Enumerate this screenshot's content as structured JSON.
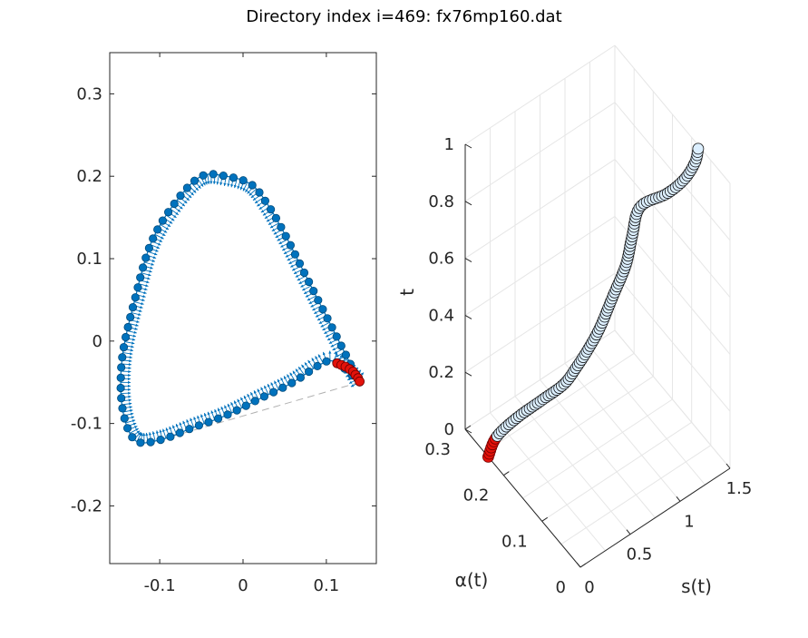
{
  "title": "Directory index i=469: fx76mp160.dat",
  "colors": {
    "body": "#0072bd",
    "body_dark": "#004a7a",
    "highlight": "#e3120b",
    "highlight_dark": "#700000",
    "light_marker": "#dcefff",
    "grid": "#e6e6e6",
    "axis": "#262626"
  },
  "chart_data": [
    {
      "type": "scatter",
      "panel": "left",
      "title": "",
      "xlabel": "",
      "ylabel": "",
      "xlim": [
        -0.16,
        0.16
      ],
      "ylim": [
        -0.27,
        0.35
      ],
      "xticks": [
        -0.1,
        0,
        0.1
      ],
      "xtick_labels": [
        "-0.1",
        "0",
        "0.1"
      ],
      "yticks": [
        -0.2,
        -0.1,
        0,
        0.1,
        0.2,
        0.3
      ],
      "ytick_labels": [
        "-0.2",
        "-0.1",
        "0",
        "0.1",
        "0.2",
        "0.3"
      ],
      "grid": false,
      "curve_outline": [
        [
          0.14,
          -0.05
        ],
        [
          0.13,
          -0.03
        ],
        [
          0.11,
          0.01
        ],
        [
          0.09,
          0.05
        ],
        [
          0.07,
          0.09
        ],
        [
          0.05,
          0.13
        ],
        [
          0.03,
          0.165
        ],
        [
          0.01,
          0.19
        ],
        [
          -0.02,
          0.2
        ],
        [
          -0.05,
          0.2
        ],
        [
          -0.08,
          0.17
        ],
        [
          -0.11,
          0.12
        ],
        [
          -0.13,
          0.05
        ],
        [
          -0.145,
          -0.02
        ],
        [
          -0.145,
          -0.08
        ],
        [
          -0.13,
          -0.12
        ],
        [
          -0.1,
          -0.12
        ],
        [
          -0.06,
          -0.105
        ],
        [
          -0.02,
          -0.09
        ],
        [
          0.02,
          -0.07
        ],
        [
          0.06,
          -0.05
        ],
        [
          0.09,
          -0.03
        ],
        [
          0.11,
          -0.025
        ],
        [
          0.14,
          -0.05
        ]
      ],
      "chord": [
        [
          0.14,
          -0.05
        ],
        [
          -0.1,
          -0.12
        ]
      ],
      "highlight_points": [
        [
          0.113,
          -0.027
        ],
        [
          0.118,
          -0.029
        ],
        [
          0.123,
          -0.031
        ],
        [
          0.128,
          -0.034
        ],
        [
          0.132,
          -0.037
        ],
        [
          0.135,
          -0.041
        ],
        [
          0.138,
          -0.045
        ],
        [
          0.14,
          -0.049
        ]
      ],
      "marker_count": 80,
      "vector_length": 0.012
    },
    {
      "type": "line3d",
      "panel": "right",
      "title": "",
      "xlabel": "s(t)",
      "ylabel": "α(t)",
      "zlabel": "t",
      "xlim": [
        0,
        1.5
      ],
      "ylim": [
        0,
        0.3
      ],
      "zlim": [
        0,
        1
      ],
      "xtick_labels": [
        "0",
        "0.5",
        "1",
        "1.5"
      ],
      "ytick_labels": [
        "0",
        "0.1",
        "0.2",
        "0.3"
      ],
      "ztick_labels": [
        "0",
        "0.2",
        "0.4",
        "0.6",
        "0.8",
        "1"
      ],
      "grid": true,
      "path": [
        [
          0.0,
          0.24,
          0.0
        ],
        [
          0.08,
          0.24,
          0.05
        ],
        [
          0.2,
          0.22,
          0.12
        ],
        [
          0.35,
          0.19,
          0.2
        ],
        [
          0.45,
          0.16,
          0.28
        ],
        [
          0.5,
          0.14,
          0.36
        ],
        [
          0.55,
          0.12,
          0.45
        ],
        [
          0.62,
          0.11,
          0.52
        ],
        [
          0.75,
          0.11,
          0.6
        ],
        [
          0.88,
          0.11,
          0.68
        ],
        [
          0.98,
          0.12,
          0.74
        ],
        [
          1.1,
          0.13,
          0.8
        ],
        [
          1.25,
          0.1,
          0.86
        ],
        [
          1.35,
          0.08,
          0.92
        ],
        [
          1.42,
          0.07,
          0.98
        ],
        [
          1.45,
          0.07,
          1.02
        ]
      ],
      "highlight_fraction": 0.06,
      "marker_count": 120
    }
  ]
}
